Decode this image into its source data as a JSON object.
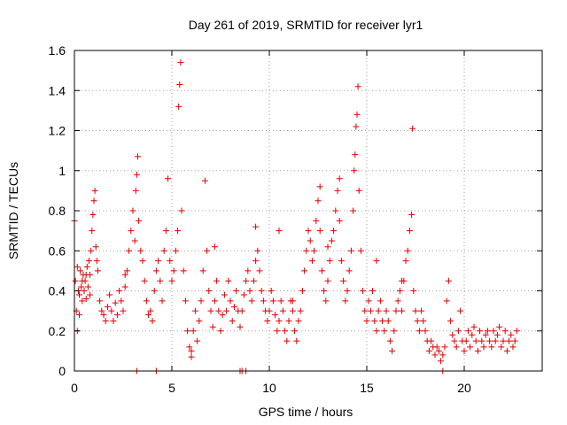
{
  "chart_data": {
    "type": "scatter",
    "title": "Day 261 of 2019, SRMTID for receiver lyr1",
    "xlabel": "GPS time / hours",
    "ylabel": "SRMTID / TECUs",
    "xlim": [
      0,
      24
    ],
    "ylim": [
      0,
      1.6
    ],
    "xticks": [
      0,
      5,
      10,
      15,
      20
    ],
    "xtick_labels": [
      "0",
      "5",
      "10",
      "15",
      "20"
    ],
    "yticks": [
      0,
      0.2,
      0.4,
      0.6,
      0.8,
      1,
      1.2,
      1.4,
      1.6
    ],
    "ytick_labels": [
      "0",
      "0.2",
      "0.4",
      "0.6",
      "0.8",
      "1",
      "1.2",
      "1.4",
      "1.6"
    ],
    "grid": true,
    "marker": "+",
    "color": "#e00000",
    "series": [
      {
        "name": "SRMTID",
        "points": [
          [
            0.0,
            0.75
          ],
          [
            0.05,
            0.45
          ],
          [
            0.1,
            0.3
          ],
          [
            0.15,
            0.52
          ],
          [
            0.2,
            0.4
          ],
          [
            0.25,
            0.38
          ],
          [
            0.3,
            0.5
          ],
          [
            0.35,
            0.42
          ],
          [
            0.4,
            0.35
          ],
          [
            0.45,
            0.48
          ],
          [
            0.5,
            0.4
          ],
          [
            0.55,
            0.45
          ],
          [
            0.6,
            0.36
          ],
          [
            0.65,
            0.52
          ],
          [
            0.7,
            0.42
          ],
          [
            0.75,
            0.55
          ],
          [
            0.8,
            0.48
          ],
          [
            0.85,
            0.6
          ],
          [
            0.9,
            0.7
          ],
          [
            0.95,
            0.78
          ],
          [
            1.0,
            0.85
          ],
          [
            1.05,
            0.9
          ],
          [
            1.1,
            0.62
          ],
          [
            1.15,
            0.55
          ],
          [
            1.2,
            0.5
          ],
          [
            0.15,
            0.2
          ],
          [
            0.25,
            0.28
          ],
          [
            0.4,
            0.45
          ],
          [
            0.6,
            0.48
          ],
          [
            0.8,
            0.38
          ],
          [
            1.3,
            0.35
          ],
          [
            1.4,
            0.3
          ],
          [
            1.5,
            0.28
          ],
          [
            1.6,
            0.25
          ],
          [
            1.7,
            0.32
          ],
          [
            1.8,
            0.38
          ],
          [
            1.9,
            0.3
          ],
          [
            2.0,
            0.25
          ],
          [
            2.1,
            0.34
          ],
          [
            2.2,
            0.28
          ],
          [
            2.3,
            0.4
          ],
          [
            2.4,
            0.35
          ],
          [
            2.5,
            0.3
          ],
          [
            2.6,
            0.42
          ],
          [
            2.7,
            0.5
          ],
          [
            2.8,
            0.6
          ],
          [
            2.9,
            0.7
          ],
          [
            3.0,
            0.8
          ],
          [
            3.1,
            0.65
          ],
          [
            3.15,
            0.9
          ],
          [
            3.2,
            0.98
          ],
          [
            3.25,
            1.07
          ],
          [
            3.3,
            0.75
          ],
          [
            3.4,
            0.6
          ],
          [
            3.5,
            0.55
          ],
          [
            3.6,
            0.45
          ],
          [
            3.7,
            0.35
          ],
          [
            3.8,
            0.28
          ],
          [
            3.9,
            0.3
          ],
          [
            4.0,
            0.25
          ],
          [
            4.1,
            0.4
          ],
          [
            4.2,
            0.5
          ],
          [
            4.3,
            0.55
          ],
          [
            4.4,
            0.45
          ],
          [
            4.5,
            0.35
          ],
          [
            4.6,
            0.6
          ],
          [
            4.7,
            0.7
          ],
          [
            4.8,
            0.96
          ],
          [
            4.9,
            0.55
          ],
          [
            5.0,
            0.45
          ],
          [
            5.1,
            0.5
          ],
          [
            5.2,
            0.6
          ],
          [
            5.3,
            0.7
          ],
          [
            5.35,
            1.32
          ],
          [
            5.4,
            1.43
          ],
          [
            5.45,
            1.54
          ],
          [
            5.5,
            0.8
          ],
          [
            5.6,
            0.5
          ],
          [
            5.7,
            0.35
          ],
          [
            5.8,
            0.2
          ],
          [
            5.9,
            0.12
          ],
          [
            6.0,
            0.1
          ],
          [
            6.1,
            0.2
          ],
          [
            6.2,
            0.3
          ],
          [
            6.3,
            0.15
          ],
          [
            6.4,
            0.25
          ],
          [
            6.5,
            0.35
          ],
          [
            6.6,
            0.5
          ],
          [
            6.7,
            0.95
          ],
          [
            6.8,
            0.6
          ],
          [
            6.9,
            0.4
          ],
          [
            7.0,
            0.3
          ],
          [
            7.1,
            0.22
          ],
          [
            7.2,
            0.35
          ],
          [
            7.3,
            0.45
          ],
          [
            7.4,
            0.3
          ],
          [
            7.5,
            0.2
          ],
          [
            7.6,
            0.28
          ],
          [
            7.7,
            0.38
          ],
          [
            7.8,
            0.3
          ],
          [
            7.9,
            0.45
          ],
          [
            8.0,
            0.35
          ],
          [
            8.1,
            0.25
          ],
          [
            8.2,
            0.32
          ],
          [
            8.3,
            0.4
          ],
          [
            8.4,
            0.3
          ],
          [
            8.5,
            0.22
          ],
          [
            8.6,
            0.3
          ],
          [
            8.7,
            0.38
          ],
          [
            8.8,
            0.45
          ],
          [
            8.9,
            0.5
          ],
          [
            9.0,
            0.4
          ],
          [
            9.1,
            0.35
          ],
          [
            9.2,
            0.45
          ],
          [
            9.3,
            0.55
          ],
          [
            9.4,
            0.6
          ],
          [
            9.5,
            0.5
          ],
          [
            9.6,
            0.4
          ],
          [
            9.7,
            0.35
          ],
          [
            9.8,
            0.3
          ],
          [
            9.9,
            0.25
          ],
          [
            10.0,
            0.3
          ],
          [
            10.1,
            0.4
          ],
          [
            10.2,
            0.35
          ],
          [
            10.3,
            0.28
          ],
          [
            10.4,
            0.2
          ],
          [
            10.5,
            0.25
          ],
          [
            10.6,
            0.35
          ],
          [
            10.7,
            0.3
          ],
          [
            10.8,
            0.2
          ],
          [
            10.9,
            0.15
          ],
          [
            11.0,
            0.25
          ],
          [
            11.1,
            0.35
          ],
          [
            11.2,
            0.3
          ],
          [
            11.3,
            0.2
          ],
          [
            11.4,
            0.15
          ],
          [
            11.5,
            0.25
          ],
          [
            11.6,
            0.3
          ],
          [
            11.7,
            0.4
          ],
          [
            11.8,
            0.5
          ],
          [
            11.9,
            0.6
          ],
          [
            12.0,
            0.7
          ],
          [
            12.1,
            0.65
          ],
          [
            12.2,
            0.55
          ],
          [
            12.3,
            0.6
          ],
          [
            12.4,
            0.75
          ],
          [
            12.5,
            0.85
          ],
          [
            12.6,
            0.7
          ],
          [
            12.7,
            0.5
          ],
          [
            12.8,
            0.4
          ],
          [
            12.9,
            0.35
          ],
          [
            13.0,
            0.45
          ],
          [
            13.1,
            0.55
          ],
          [
            13.2,
            0.65
          ],
          [
            13.3,
            0.7
          ],
          [
            13.4,
            0.8
          ],
          [
            13.5,
            0.9
          ],
          [
            13.6,
            0.75
          ],
          [
            13.7,
            0.55
          ],
          [
            13.8,
            0.45
          ],
          [
            13.9,
            0.35
          ],
          [
            14.0,
            0.4
          ],
          [
            14.1,
            0.5
          ],
          [
            14.2,
            0.6
          ],
          [
            14.3,
            0.8
          ],
          [
            14.35,
            1.0
          ],
          [
            14.4,
            1.08
          ],
          [
            14.45,
            1.22
          ],
          [
            14.5,
            1.28
          ],
          [
            14.55,
            1.42
          ],
          [
            14.6,
            0.9
          ],
          [
            14.7,
            0.6
          ],
          [
            14.8,
            0.4
          ],
          [
            14.9,
            0.3
          ],
          [
            15.0,
            0.25
          ],
          [
            15.1,
            0.35
          ],
          [
            15.2,
            0.3
          ],
          [
            15.3,
            0.4
          ],
          [
            15.4,
            0.25
          ],
          [
            15.5,
            0.2
          ],
          [
            15.6,
            0.3
          ],
          [
            15.7,
            0.35
          ],
          [
            15.8,
            0.25
          ],
          [
            15.9,
            0.2
          ],
          [
            16.0,
            0.3
          ],
          [
            16.1,
            0.25
          ],
          [
            16.2,
            0.15
          ],
          [
            16.3,
            0.1
          ],
          [
            16.4,
            0.2
          ],
          [
            16.5,
            0.3
          ],
          [
            16.6,
            0.35
          ],
          [
            16.7,
            0.4
          ],
          [
            16.8,
            0.3
          ],
          [
            16.9,
            0.45
          ],
          [
            17.0,
            0.55
          ],
          [
            17.1,
            0.6
          ],
          [
            17.2,
            0.7
          ],
          [
            17.3,
            0.78
          ],
          [
            17.35,
            1.21
          ],
          [
            17.4,
            0.4
          ],
          [
            17.5,
            0.3
          ],
          [
            17.6,
            0.25
          ],
          [
            17.7,
            0.2
          ],
          [
            17.8,
            0.3
          ],
          [
            17.9,
            0.25
          ],
          [
            18.0,
            0.2
          ],
          [
            18.1,
            0.15
          ],
          [
            18.2,
            0.1
          ],
          [
            18.3,
            0.15
          ],
          [
            18.4,
            0.12
          ],
          [
            18.5,
            0.08
          ],
          [
            18.6,
            0.12
          ],
          [
            18.7,
            0.1
          ],
          [
            18.8,
            0.05
          ],
          [
            18.9,
            0.08
          ],
          [
            19.0,
            0.12
          ],
          [
            19.1,
            0.35
          ],
          [
            19.2,
            0.45
          ],
          [
            19.3,
            0.25
          ],
          [
            19.4,
            0.18
          ],
          [
            19.5,
            0.15
          ],
          [
            19.6,
            0.12
          ],
          [
            19.7,
            0.2
          ],
          [
            19.8,
            0.3
          ],
          [
            19.9,
            0.15
          ],
          [
            20.0,
            0.1
          ],
          [
            20.1,
            0.15
          ],
          [
            20.2,
            0.2
          ],
          [
            20.3,
            0.12
          ],
          [
            20.4,
            0.18
          ],
          [
            20.5,
            0.22
          ],
          [
            20.6,
            0.15
          ],
          [
            20.7,
            0.1
          ],
          [
            20.8,
            0.2
          ],
          [
            20.9,
            0.15
          ],
          [
            21.0,
            0.12
          ],
          [
            21.1,
            0.18
          ],
          [
            21.2,
            0.2
          ],
          [
            21.3,
            0.15
          ],
          [
            21.4,
            0.12
          ],
          [
            21.5,
            0.2
          ],
          [
            21.6,
            0.15
          ],
          [
            21.7,
            0.18
          ],
          [
            21.8,
            0.22
          ],
          [
            21.9,
            0.12
          ],
          [
            22.0,
            0.15
          ],
          [
            22.1,
            0.2
          ],
          [
            22.2,
            0.1
          ],
          [
            22.3,
            0.15
          ],
          [
            22.4,
            0.18
          ],
          [
            22.5,
            0.12
          ],
          [
            22.6,
            0.15
          ],
          [
            22.7,
            0.2
          ],
          [
            4.2,
            0.0
          ],
          [
            8.5,
            0.0
          ],
          [
            8.6,
            0.0
          ],
          [
            8.8,
            0.0
          ],
          [
            3.2,
            0.0
          ],
          [
            18.9,
            0.0
          ],
          [
            9.3,
            0.72
          ],
          [
            10.5,
            0.7
          ],
          [
            12.6,
            0.92
          ],
          [
            13.6,
            0.96
          ],
          [
            15.5,
            0.55
          ],
          [
            16.8,
            0.45
          ],
          [
            2.6,
            0.48
          ],
          [
            7.2,
            0.62
          ],
          [
            11.2,
            0.35
          ],
          [
            13.0,
            0.62
          ],
          [
            6.0,
            0.07
          ]
        ]
      }
    ]
  }
}
